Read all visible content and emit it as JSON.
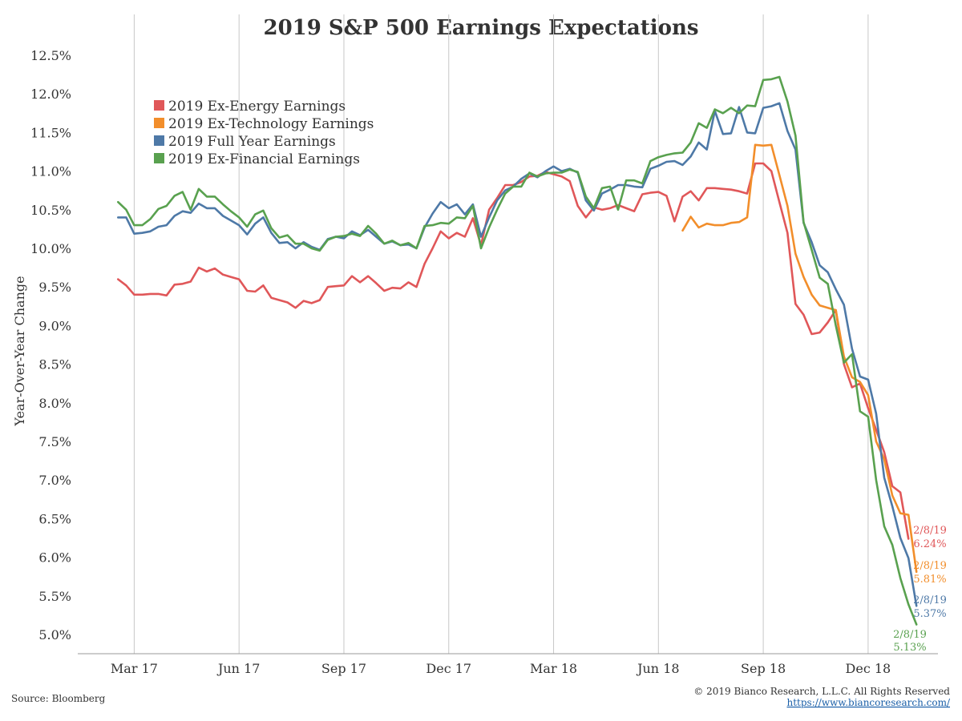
{
  "chart_data": {
    "type": "line",
    "title": "2019 S&P 500 Earnings Expectations",
    "ylabel": "Year-Over-Year Change",
    "ylim": [
      5.0,
      12.5
    ],
    "yticks": [
      "5.0%",
      "5.5%",
      "6.0%",
      "6.5%",
      "7.0%",
      "7.5%",
      "8.0%",
      "8.5%",
      "9.0%",
      "9.5%",
      "10.0%",
      "10.5%",
      "11.0%",
      "11.5%",
      "12.0%",
      "12.5%"
    ],
    "xticks": [
      "Mar 17",
      "Jun 17",
      "Sep 17",
      "Dec 17",
      "Mar 18",
      "Jun 18",
      "Sep 18",
      "Dec 18"
    ],
    "xtick_weeks": [
      1,
      14,
      27,
      40,
      53,
      66,
      79,
      92
    ],
    "x_weeks_domain": [
      -1.5,
      104
    ],
    "grid": "vertical",
    "legend_position": "top-left",
    "series": [
      {
        "name": "2019 Ex-Energy Earnings",
        "color": "#e05759",
        "start_week": -1,
        "values": [
          9.6,
          9.52,
          9.4,
          9.4,
          9.41,
          9.41,
          9.39,
          9.53,
          9.54,
          9.57,
          9.75,
          9.7,
          9.74,
          9.66,
          9.63,
          9.6,
          9.45,
          9.44,
          9.52,
          9.36,
          9.33,
          9.3,
          9.23,
          9.32,
          9.29,
          9.33,
          9.5,
          9.51,
          9.52,
          9.64,
          9.56,
          9.64,
          9.55,
          9.45,
          9.49,
          9.48,
          9.56,
          9.5,
          9.8,
          10.0,
          10.22,
          10.13,
          10.2,
          10.15,
          10.39,
          10.04,
          10.5,
          10.65,
          10.82,
          10.82,
          10.86,
          10.93,
          10.94,
          10.99,
          10.96,
          10.93,
          10.87,
          10.55,
          10.4,
          10.53,
          10.5,
          10.52,
          10.56,
          10.52,
          10.48,
          10.7,
          10.72,
          10.73,
          10.68,
          10.35,
          10.67,
          10.74,
          10.62,
          10.78,
          10.78,
          10.77,
          10.76,
          10.74,
          10.71,
          11.1,
          11.1,
          11.0,
          10.6,
          10.2,
          9.28,
          9.14,
          8.89,
          8.91,
          9.04,
          9.2,
          8.5,
          8.2,
          8.25,
          7.93,
          7.65,
          7.36,
          6.92,
          6.84,
          6.24
        ]
      },
      {
        "name": "2019 Ex-Technology Earnings",
        "color": "#f28e2b",
        "start_week": 69,
        "values": [
          10.23,
          10.41,
          10.27,
          10.32,
          10.3,
          10.3,
          10.33,
          10.34,
          10.4,
          11.34,
          11.33,
          11.34,
          10.95,
          10.55,
          9.93,
          9.63,
          9.4,
          9.26,
          9.23,
          9.2,
          8.6,
          8.33,
          8.27,
          8.1,
          7.5,
          7.27,
          6.8,
          6.57,
          6.55,
          5.81
        ]
      },
      {
        "name": "2019 Full Year Earnings",
        "color": "#4e79a7",
        "start_week": -1,
        "values": [
          10.4,
          10.4,
          10.19,
          10.2,
          10.22,
          10.28,
          10.3,
          10.42,
          10.48,
          10.46,
          10.58,
          10.52,
          10.52,
          10.42,
          10.36,
          10.3,
          10.18,
          10.32,
          10.4,
          10.2,
          10.07,
          10.08,
          10.0,
          10.08,
          10.02,
          9.98,
          10.12,
          10.15,
          10.13,
          10.22,
          10.17,
          10.24,
          10.15,
          10.06,
          10.09,
          10.04,
          10.05,
          10.0,
          10.27,
          10.45,
          10.6,
          10.52,
          10.57,
          10.44,
          10.57,
          10.15,
          10.4,
          10.62,
          10.75,
          10.8,
          10.9,
          10.97,
          10.92,
          11.0,
          11.06,
          11.0,
          11.03,
          10.98,
          10.62,
          10.49,
          10.71,
          10.76,
          10.82,
          10.82,
          10.8,
          10.79,
          11.03,
          11.07,
          11.12,
          11.13,
          11.08,
          11.19,
          11.37,
          11.28,
          11.78,
          11.48,
          11.49,
          11.83,
          11.5,
          11.49,
          11.82,
          11.84,
          11.88,
          11.52,
          11.28,
          10.33,
          10.08,
          9.78,
          9.69,
          9.47,
          9.27,
          8.7,
          8.34,
          8.3,
          7.86,
          7.03,
          6.66,
          6.25,
          5.99,
          5.37
        ]
      },
      {
        "name": "2019 Ex-Financial Earnings",
        "color": "#59a14f",
        "start_week": -1,
        "values": [
          10.6,
          10.5,
          10.3,
          10.3,
          10.38,
          10.51,
          10.55,
          10.68,
          10.73,
          10.5,
          10.77,
          10.67,
          10.67,
          10.57,
          10.48,
          10.4,
          10.28,
          10.44,
          10.49,
          10.26,
          10.14,
          10.17,
          10.06,
          10.06,
          10.0,
          9.97,
          10.11,
          10.15,
          10.16,
          10.19,
          10.16,
          10.29,
          10.19,
          10.06,
          10.1,
          10.04,
          10.07,
          10.0,
          10.29,
          10.3,
          10.33,
          10.32,
          10.4,
          10.39,
          10.55,
          10.0,
          10.27,
          10.5,
          10.71,
          10.8,
          10.8,
          10.98,
          10.93,
          10.97,
          10.98,
          10.98,
          11.02,
          10.99,
          10.67,
          10.52,
          10.78,
          10.8,
          10.5,
          10.88,
          10.88,
          10.84,
          11.13,
          11.18,
          11.21,
          11.23,
          11.24,
          11.37,
          11.62,
          11.56,
          11.8,
          11.75,
          11.82,
          11.75,
          11.85,
          11.84,
          12.18,
          12.19,
          12.22,
          11.9,
          11.46,
          10.34,
          9.98,
          9.62,
          9.54,
          9.0,
          8.52,
          8.63,
          7.89,
          7.82,
          7.0,
          6.4,
          6.16,
          5.73,
          5.39,
          5.13
        ]
      }
    ],
    "end_labels": [
      {
        "series": 0,
        "date": "2/8/19",
        "value": "6.24%"
      },
      {
        "series": 1,
        "date": "2/8/19",
        "value": "5.81%"
      },
      {
        "series": 2,
        "date": "2/8/19",
        "value": "5.37%"
      },
      {
        "series": 3,
        "date": "2/8/19",
        "value": "5.13%"
      }
    ]
  },
  "footer": {
    "source": "Source: Bloomberg",
    "copyright": "© 2019 Bianco Research, L.L.C. All Rights Reserved",
    "link": "https://www.biancoresearch.com/"
  }
}
